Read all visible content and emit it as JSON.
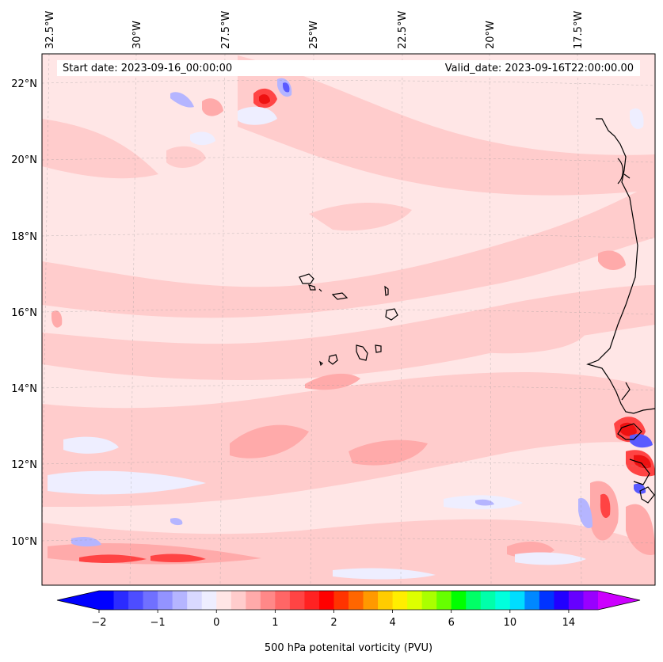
{
  "header": {
    "start_date": "Start date: 2023-09-16_00:00:00",
    "valid_date": "Valid_date: 2023-09-16T22:00:00.00"
  },
  "map": {
    "lon_labels": [
      "32.5°W",
      "30°W",
      "27.5°W",
      "25°W",
      "22.5°W",
      "20°W",
      "17.5°W"
    ],
    "lat_labels": [
      "22°N",
      "20°N",
      "18°N",
      "16°N",
      "14°N",
      "12°N",
      "10°N"
    ],
    "gridlines": "on"
  },
  "colorbar": {
    "label": "500 hPa potenital vorticity (PVU)",
    "tick_labels": [
      "−2",
      "−1",
      "0",
      "1",
      "2",
      "4",
      "6",
      "10",
      "14"
    ],
    "colors": [
      "#0000ff",
      "#2b2bff",
      "#4d4dff",
      "#7070ff",
      "#9393ff",
      "#b5b5ff",
      "#d9d9ff",
      "#eeeeff",
      "#ffe6e6",
      "#ffcccc",
      "#ffaaaa",
      "#ff8888",
      "#ff6666",
      "#ff4444",
      "#ff2222",
      "#ff0000",
      "#ff3300",
      "#ff6600",
      "#ff9900",
      "#ffcc00",
      "#ffee00",
      "#ddff00",
      "#aaff00",
      "#66ff00",
      "#00ff00",
      "#00ff66",
      "#00ffaa",
      "#00ffdd",
      "#00ddff",
      "#0088ff",
      "#0033ff",
      "#2200ff",
      "#6600ff",
      "#9900ff"
    ],
    "extend_low_color": "#0000ff",
    "extend_high_color": "#cc00ff"
  },
  "field_colors": {
    "background": "#ffe6e6",
    "light_pink": "#ffcccc",
    "pink": "#ffaaaa",
    "red": "#ff4444",
    "deep_red": "#ee1111",
    "pale_blue": "#eeeeff",
    "light_blue": "#b5b5ff",
    "blue": "#5a5aff",
    "coast": "#000000"
  }
}
